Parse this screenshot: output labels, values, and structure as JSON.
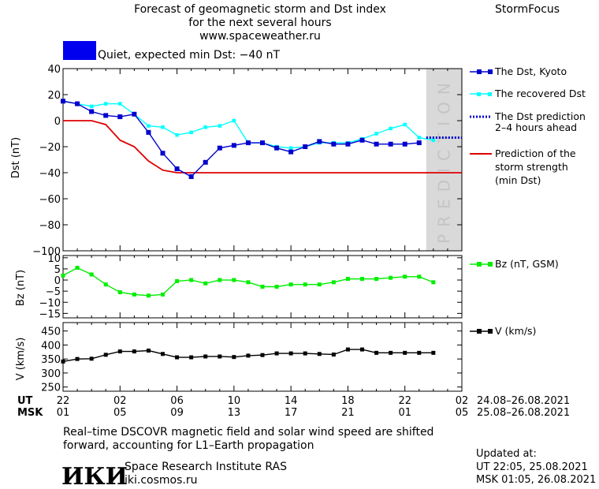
{
  "header": {
    "title_line1": "Forecast of geomagnetic storm and Dst index",
    "title_line2": "for the next several hours",
    "url": "www.spaceweather.ru",
    "brand": "StormFocus",
    "status_text": "Quiet, expected min Dst: −40 nT",
    "status_color": "#0000ee"
  },
  "legend": {
    "dst_kyoto": "The Dst, Kyoto",
    "recovered_line1": "The recovered Dst",
    "prediction_line1": "The Dst prediction",
    "prediction_line2": "2–4 hours ahead",
    "strength_line1": "Prediction of the",
    "strength_line2": "storm strength",
    "strength_line3": "(min Dst)",
    "bz": "Bz (nT, GSM)",
    "v": "V (km/s)"
  },
  "prediction_label": "PREDICTION",
  "time_axis": {
    "ut_label": "UT",
    "msk_label": "MSK",
    "ut_ticks": [
      "22",
      "02",
      "06",
      "10",
      "14",
      "18",
      "22",
      "02"
    ],
    "msk_ticks": [
      "01",
      "05",
      "09",
      "13",
      "17",
      "21",
      "01",
      "05"
    ],
    "ut_range": "24.08–26.08.2021",
    "msk_range": "25.08–26.08.2021"
  },
  "footer": {
    "note_line1": "Real–time DSCOVR magnetic field and solar wind speed are shifted",
    "note_line2": "forward, accounting for L1–Earth propagation",
    "logo_text": "ИКИ",
    "institute": "Space Research Institute RAS",
    "site": "iki.cosmos.ru",
    "updated_label": "Updated at:",
    "updated_ut": "UT   22:05, 25.08.2021",
    "updated_msk": "MSK 01:05, 26.08.2021"
  },
  "colors": {
    "dst": "#0000cc",
    "recovered": "#00ffff",
    "prediction": "#0000cc",
    "strength": "#dd0000",
    "bz": "#00ee00",
    "v": "#000000",
    "prediction_zone": "#d9d9d9"
  },
  "chart_data": [
    {
      "type": "line",
      "ylabel": "Dst (nT)",
      "x_unit": "hours since 22 UT 24.08.2021",
      "xlim": [
        0,
        28
      ],
      "ylim": [
        -100,
        40
      ],
      "yticks": [
        40,
        20,
        0,
        -20,
        -40,
        -60,
        -80,
        -100
      ],
      "prediction_zone": [
        25.5,
        28
      ],
      "series": [
        {
          "name": "The Dst, Kyoto",
          "x": [
            0,
            1,
            2,
            3,
            4,
            5,
            6,
            7,
            8,
            9,
            10,
            11,
            12,
            13,
            14,
            15,
            16,
            17,
            18,
            19,
            20,
            21,
            22,
            23,
            24,
            25
          ],
          "values": [
            15,
            13,
            7,
            4,
            3,
            5,
            -9,
            -25,
            -37,
            -43,
            -32,
            -21,
            -19,
            -17,
            -17,
            -21,
            -24,
            -20,
            -16,
            -18,
            -18,
            -15,
            -18,
            -18,
            -18,
            -17
          ]
        },
        {
          "name": "The recovered Dst",
          "x": [
            0,
            1,
            2,
            3,
            4,
            5,
            6,
            7,
            8,
            9,
            10,
            11,
            12,
            13,
            14,
            15,
            16,
            17,
            18,
            19,
            20,
            21,
            22,
            23,
            24,
            25,
            26
          ],
          "values": [
            15,
            13,
            11,
            13,
            13,
            5,
            -4,
            -5,
            -11,
            -9,
            -5,
            -4,
            0,
            -17,
            -17,
            -20,
            -21,
            -20,
            -17,
            -17,
            -17,
            -14,
            -10,
            -6,
            -3,
            -13,
            -15
          ]
        },
        {
          "name": "The Dst prediction 2–4 hours ahead",
          "x": [
            25.5,
            28
          ],
          "values": [
            -13,
            -13
          ]
        },
        {
          "name": "Prediction of the storm strength (min Dst)",
          "x": [
            0,
            1,
            2,
            3,
            4,
            5,
            6,
            7,
            8,
            28
          ],
          "values": [
            0,
            0,
            0,
            -3,
            -15,
            -20,
            -31,
            -38,
            -40,
            -40
          ]
        }
      ]
    },
    {
      "type": "line",
      "ylabel": "Bz (nT)",
      "xlim": [
        0,
        28
      ],
      "ylim": [
        -17,
        11
      ],
      "yticks": [
        10,
        5,
        0,
        -5,
        -10,
        -15
      ],
      "series": [
        {
          "name": "Bz (nT, GSM)",
          "x": [
            0,
            1,
            2,
            3,
            4,
            5,
            6,
            7,
            8,
            9,
            10,
            11,
            12,
            13,
            14,
            15,
            16,
            17,
            18,
            19,
            20,
            21,
            22,
            23,
            24,
            25,
            26
          ],
          "values": [
            2,
            5.5,
            2.5,
            -2,
            -5.5,
            -6.5,
            -7,
            -6.5,
            -0.5,
            0,
            -1.5,
            0,
            0,
            -1,
            -3,
            -3,
            -2,
            -2,
            -2,
            -1,
            0.5,
            0.5,
            0.5,
            1,
            1.5,
            1.5,
            -1
          ]
        }
      ]
    },
    {
      "type": "line",
      "ylabel": "V (km/s)",
      "xlim": [
        0,
        28
      ],
      "ylim": [
        235,
        480
      ],
      "yticks": [
        450,
        400,
        350,
        300,
        250
      ],
      "series": [
        {
          "name": "V (km/s)",
          "x": [
            0,
            1,
            2,
            3,
            4,
            5,
            6,
            7,
            8,
            9,
            10,
            11,
            12,
            13,
            14,
            15,
            16,
            17,
            18,
            19,
            20,
            21,
            22,
            23,
            24,
            25,
            26
          ],
          "values": [
            341,
            350,
            351,
            365,
            377,
            377,
            380,
            368,
            356,
            356,
            359,
            359,
            357,
            362,
            364,
            370,
            370,
            370,
            368,
            366,
            384,
            384,
            372,
            372,
            372,
            372,
            372
          ]
        }
      ]
    }
  ]
}
